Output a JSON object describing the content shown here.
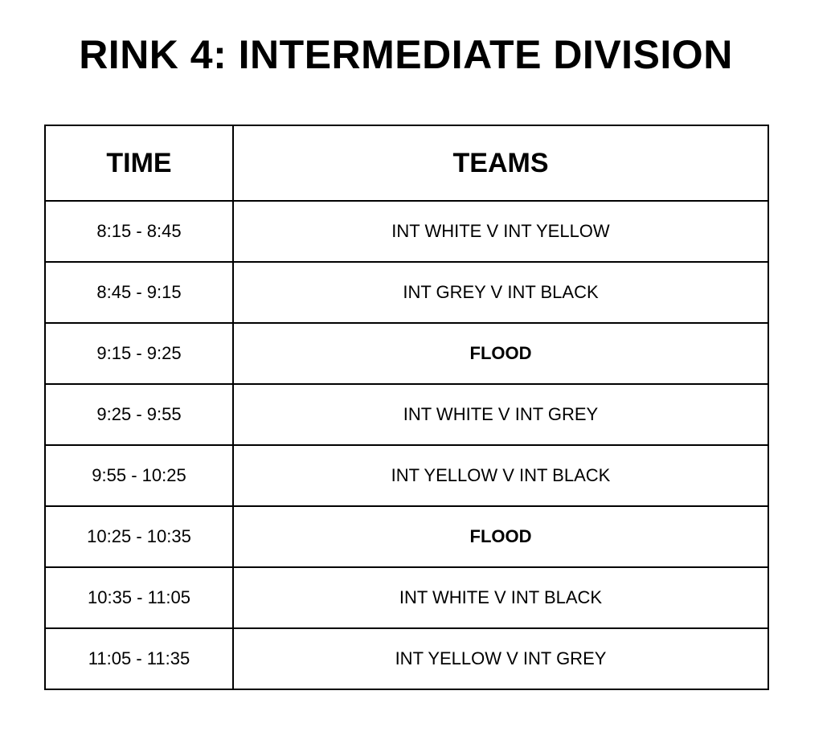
{
  "title": "RINK 4: INTERMEDIATE DIVISION",
  "table": {
    "headers": [
      "TIME",
      "TEAMS"
    ],
    "rows": [
      {
        "time": "8:15 - 8:45",
        "teams": "INT WHITE V INT YELLOW",
        "bold": false
      },
      {
        "time": "8:45 - 9:15",
        "teams": "INT GREY V INT BLACK",
        "bold": false
      },
      {
        "time": "9:15 - 9:25",
        "teams": "FLOOD",
        "bold": true
      },
      {
        "time": "9:25 - 9:55",
        "teams": "INT WHITE V INT GREY",
        "bold": false
      },
      {
        "time": "9:55 - 10:25",
        "teams": "INT YELLOW V INT BLACK",
        "bold": false
      },
      {
        "time": "10:25 - 10:35",
        "teams": "FLOOD",
        "bold": true
      },
      {
        "time": "10:35 - 11:05",
        "teams": "INT WHITE V INT BLACK",
        "bold": false
      },
      {
        "time": "11:05 - 11:35",
        "teams": "INT YELLOW V INT GREY",
        "bold": false
      }
    ]
  }
}
